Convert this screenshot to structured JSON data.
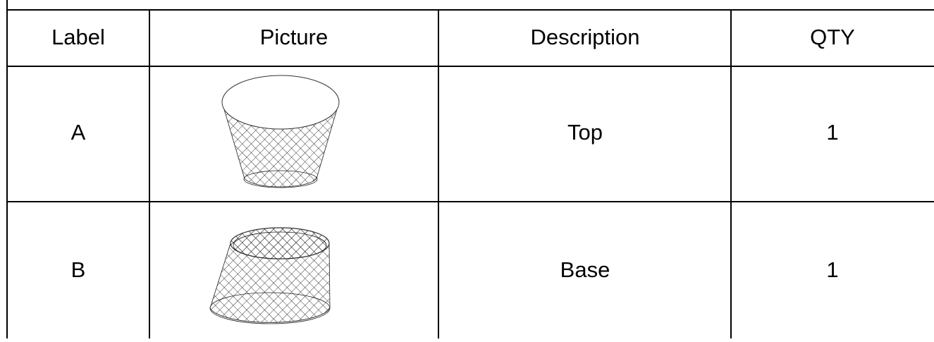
{
  "table": {
    "columns": [
      "Label",
      "Picture",
      "Description",
      "QTY"
    ],
    "rows": [
      {
        "label": "A",
        "description": "Top",
        "qty": 1
      },
      {
        "label": "B",
        "description": "Base",
        "qty": 1
      }
    ]
  }
}
